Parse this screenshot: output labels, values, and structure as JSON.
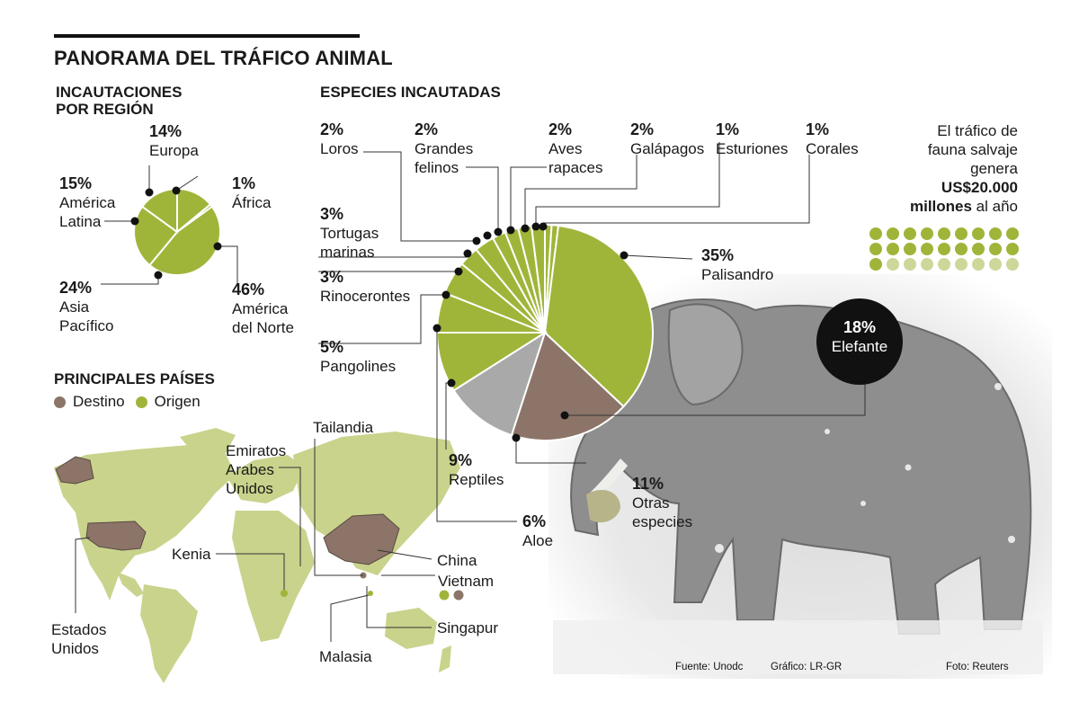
{
  "title": "PANORAMA DEL TRÁFICO ANIMAL",
  "region": {
    "title_line1": "INCAUTACIONES",
    "title_line2": "POR REGIÓN",
    "labels": [
      {
        "pct": "14%",
        "l1": "Europa",
        "l2": ""
      },
      {
        "pct": "1%",
        "l1": "África",
        "l2": ""
      },
      {
        "pct": "15%",
        "l1": "América",
        "l2": "Latina"
      },
      {
        "pct": "24%",
        "l1": "Asia",
        "l2": "Pacífico"
      },
      {
        "pct": "46%",
        "l1": "América",
        "l2": "del Norte"
      }
    ]
  },
  "species": {
    "title": "ESPECIES INCAUTADAS",
    "labels": [
      {
        "pct": "2%",
        "l1": "Loros",
        "l2": ""
      },
      {
        "pct": "2%",
        "l1": "Grandes",
        "l2": "felinos"
      },
      {
        "pct": "2%",
        "l1": "Aves",
        "l2": "rapaces"
      },
      {
        "pct": "2%",
        "l1": "Galápagos",
        "l2": ""
      },
      {
        "pct": "1%",
        "l1": "Esturiones",
        "l2": ""
      },
      {
        "pct": "1%",
        "l1": "Corales",
        "l2": ""
      },
      {
        "pct": "3%",
        "l1": "Tortugas",
        "l2": "marinas"
      },
      {
        "pct": "3%",
        "l1": "Rinocerontes",
        "l2": ""
      },
      {
        "pct": "5%",
        "l1": "Pangolines",
        "l2": ""
      },
      {
        "pct": "9%",
        "l1": "Reptiles",
        "l2": ""
      },
      {
        "pct": "6%",
        "l1": "Aloe",
        "l2": ""
      },
      {
        "pct": "11%",
        "l1": "Otras",
        "l2": "especies"
      },
      {
        "pct": "35%",
        "l1": "Palisandro",
        "l2": ""
      },
      {
        "pct": "18%",
        "l1": "Elefante",
        "l2": ""
      }
    ]
  },
  "side_note": {
    "l1": "El tráfico de",
    "l2": "fauna salvaje",
    "l3": "genera",
    "l4": "US$20.000",
    "l5a": "millones",
    "l5b": " al año",
    "dots": {
      "full": 19,
      "light": 8
    }
  },
  "countries": {
    "title": "PRINCIPALES PAÍSES",
    "legend": [
      "Destino",
      "Origen"
    ],
    "labels": [
      "Tailandia",
      "Emiratos",
      "Arabes",
      "Unidos",
      "Kenia",
      "China",
      "Vietnam",
      "Estados",
      "Unidos",
      "Singapur",
      "Malasia"
    ]
  },
  "footer": {
    "source": "Fuente: Unodc",
    "graphic": "Gráfico: LR-GR",
    "photo": "Foto: Reuters"
  },
  "colors": {
    "green": "#9fb53a",
    "brown": "#8c7468",
    "gray": "#a9a9a9",
    "land": "#c9d38c",
    "black": "#111111"
  },
  "chart_data": [
    {
      "type": "pie",
      "title": "INCAUTACIONES POR REGIÓN",
      "categories": [
        "Europa",
        "África",
        "América del Norte",
        "Asia Pacífico",
        "América Latina"
      ],
      "values": [
        14,
        1,
        46,
        24,
        15
      ]
    },
    {
      "type": "pie",
      "title": "ESPECIES INCAUTADAS",
      "categories": [
        "Esturiones",
        "Corales",
        "Palisandro",
        "Elefante",
        "Otras especies",
        "Reptiles",
        "Aloe",
        "Pangolines",
        "Rinocerontes",
        "Tortugas marinas",
        "Loros",
        "Grandes felinos",
        "Aves rapaces",
        "Galápagos"
      ],
      "values": [
        1,
        1,
        35,
        18,
        11,
        9,
        6,
        5,
        3,
        3,
        2,
        2,
        2,
        2
      ]
    }
  ]
}
